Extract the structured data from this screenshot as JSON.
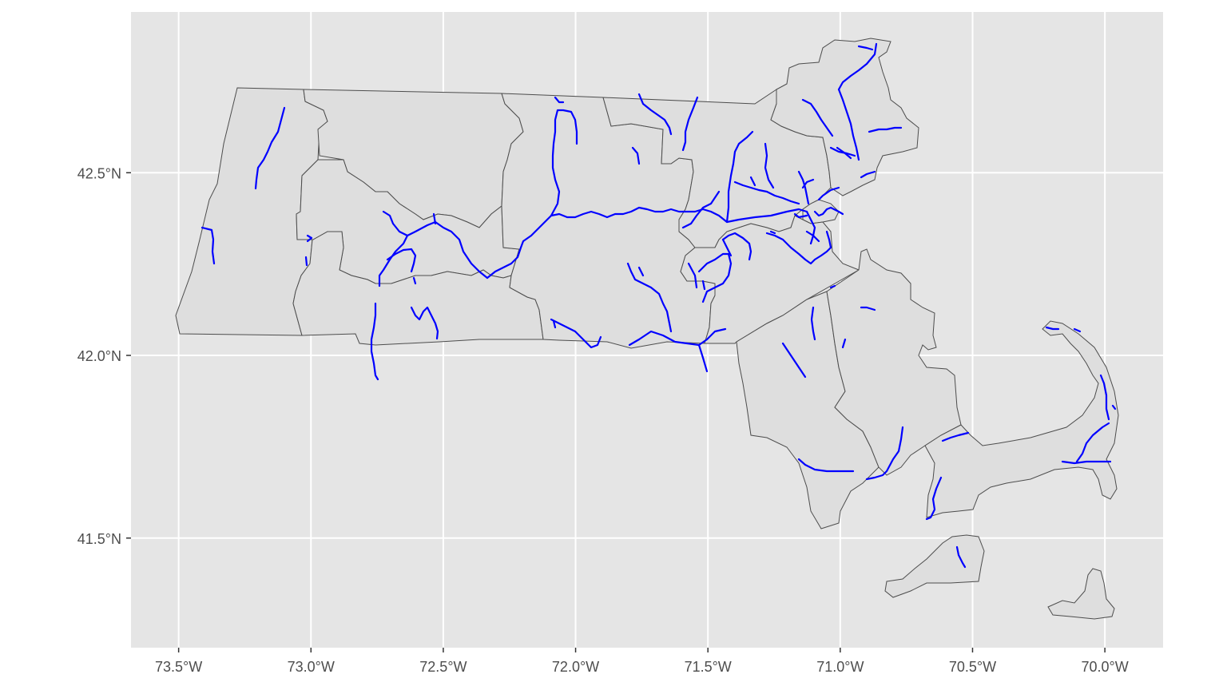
{
  "map": {
    "background_color": "#e5e5e5",
    "gridline_color": "#ffffff",
    "land_fill": "#dedede",
    "boundary_color": "#4d4d4d",
    "feature_color": "#0000ff",
    "x_axis": {
      "ticks": [
        {
          "label": "73.5°W",
          "lon": -73.5
        },
        {
          "label": "73.0°W",
          "lon": -73.0
        },
        {
          "label": "72.5°W",
          "lon": -72.5
        },
        {
          "label": "72.0°W",
          "lon": -72.0
        },
        {
          "label": "71.5°W",
          "lon": -71.5
        },
        {
          "label": "71.0°W",
          "lon": -71.0
        },
        {
          "label": "70.5°W",
          "lon": -70.5
        },
        {
          "label": "70.0°W",
          "lon": -70.0
        }
      ]
    },
    "y_axis": {
      "ticks": [
        {
          "label": "42.5°N",
          "lat": 42.5
        },
        {
          "label": "42.0°N",
          "lat": 42.0
        },
        {
          "label": "41.5°N",
          "lat": 41.5
        }
      ]
    },
    "extent": {
      "lon_min": -73.68,
      "lon_max": -69.78,
      "lat_min": 41.2,
      "lat_max": 42.94
    }
  }
}
